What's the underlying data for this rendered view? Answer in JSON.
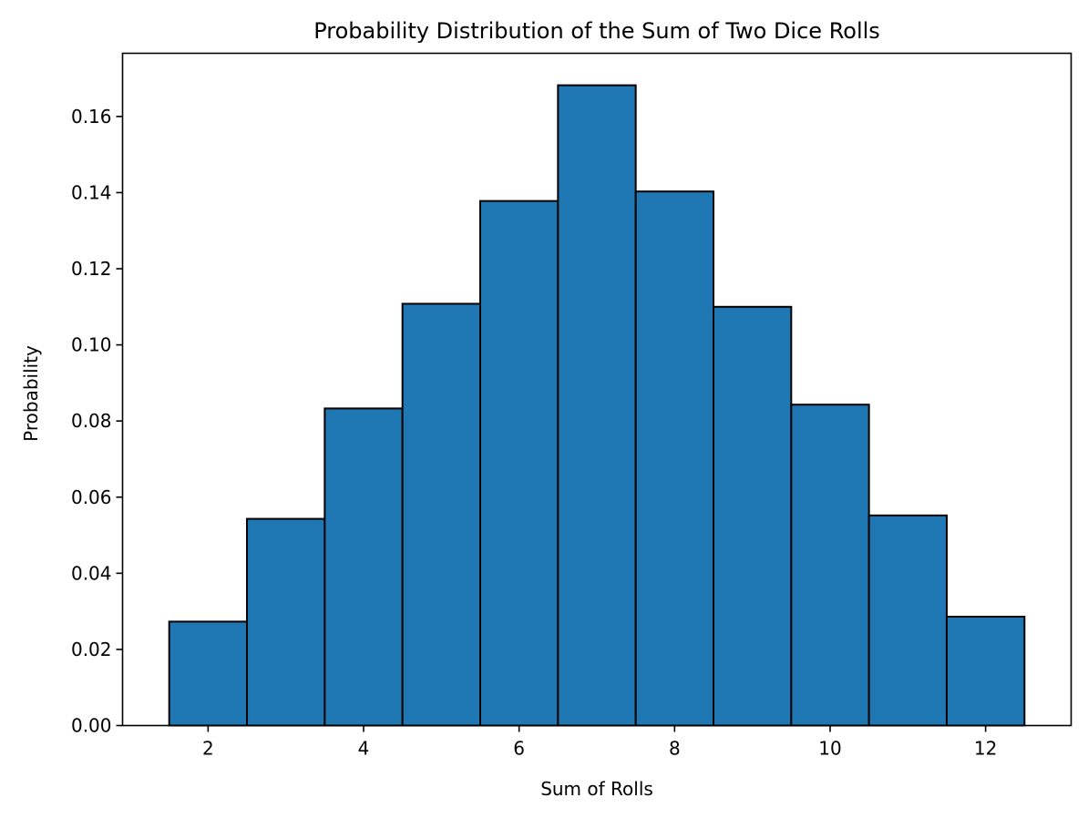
{
  "chart_data": {
    "type": "bar",
    "title": "Probability Distribution of the Sum of Two Dice Rolls",
    "xlabel": "Sum of Rolls",
    "ylabel": "Probability",
    "categories": [
      2,
      3,
      4,
      5,
      6,
      7,
      8,
      9,
      10,
      11,
      12
    ],
    "values": [
      0.0273,
      0.0543,
      0.0833,
      0.1108,
      0.1378,
      0.1682,
      0.1403,
      0.11,
      0.0843,
      0.0552,
      0.0286
    ],
    "bin_width": 1,
    "xlim": [
      0.9,
      13.1
    ],
    "ylim": [
      0,
      0.1766
    ],
    "x_ticks": [
      2,
      4,
      6,
      8,
      10,
      12
    ],
    "y_ticks": [
      0.0,
      0.02,
      0.04,
      0.06,
      0.08,
      0.1,
      0.12,
      0.14,
      0.16
    ],
    "y_tick_labels": [
      "0.00",
      "0.02",
      "0.04",
      "0.06",
      "0.08",
      "0.10",
      "0.12",
      "0.14",
      "0.16"
    ],
    "x_tick_labels": [
      "2",
      "4",
      "6",
      "8",
      "10",
      "12"
    ],
    "bar_color": "#1f77b4",
    "bar_edge_color": "#000000",
    "grid": false,
    "legend": "none"
  }
}
